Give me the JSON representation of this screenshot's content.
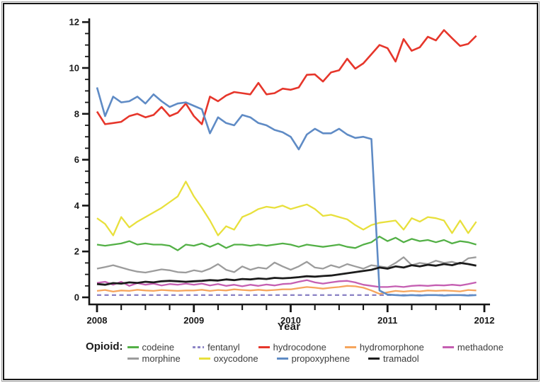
{
  "figure": {
    "x_axis_title": "Year"
  },
  "legend": {
    "title": "Opioid:",
    "rows": [
      [
        "codeine",
        "fentanyl",
        "hydrocodone",
        "hydromorphone",
        "methadone"
      ],
      [
        "morphine",
        "oxycodone",
        "propoxyphene",
        "tramadol"
      ]
    ]
  },
  "chart_data": {
    "type": "line",
    "title": "",
    "xlabel": "Year",
    "ylabel": "",
    "x_frequency": "monthly",
    "x_start": "2008-01",
    "x_end": "2011-12",
    "xlim": [
      2008,
      2012
    ],
    "ylim": [
      0,
      12
    ],
    "x_tick_labels": [
      "2008",
      "2009",
      "2010",
      "2011",
      "2012"
    ],
    "y_tick_labels": [
      "0",
      "2",
      "4",
      "6",
      "8",
      "10",
      "12"
    ],
    "y_minor_tick_step": 0.5,
    "x_minor_ticks_per_year": 4,
    "grid": false,
    "legend_position": "bottom",
    "annotations": [
      "propoxyphene drops from ~6.9 to ~0.1 between Nov and Dec 2010"
    ],
    "series": [
      {
        "name": "codeine",
        "color": "#53b046",
        "dash": false,
        "values": [
          2.3,
          2.25,
          2.3,
          2.35,
          2.45,
          2.3,
          2.35,
          2.3,
          2.3,
          2.25,
          2.05,
          2.3,
          2.25,
          2.35,
          2.2,
          2.35,
          2.15,
          2.3,
          2.3,
          2.25,
          2.3,
          2.25,
          2.3,
          2.35,
          2.3,
          2.2,
          2.3,
          2.25,
          2.2,
          2.25,
          2.3,
          2.2,
          2.15,
          2.3,
          2.4,
          2.65,
          2.45,
          2.6,
          2.4,
          2.55,
          2.45,
          2.5,
          2.4,
          2.5,
          2.35,
          2.45,
          2.4,
          2.3
        ]
      },
      {
        "name": "fentanyl",
        "color": "#8d85c6",
        "dash": true,
        "values": [
          0.1,
          0.1,
          0.1,
          0.1,
          0.1,
          0.1,
          0.1,
          0.1,
          0.1,
          0.1,
          0.1,
          0.1,
          0.1,
          0.1,
          0.1,
          0.1,
          0.1,
          0.1,
          0.1,
          0.1,
          0.1,
          0.1,
          0.1,
          0.1,
          0.1,
          0.1,
          0.1,
          0.1,
          0.1,
          0.1,
          0.1,
          0.1,
          0.1,
          0.1,
          0.1,
          0.1,
          0.1,
          0.1,
          0.1,
          0.1,
          0.1,
          0.1,
          0.1,
          0.1,
          0.1,
          0.1,
          0.1,
          0.1
        ]
      },
      {
        "name": "hydrocodone",
        "color": "#e6362b",
        "dash": false,
        "values": [
          8.1,
          7.55,
          7.6,
          7.65,
          7.9,
          8.0,
          7.85,
          7.95,
          8.3,
          7.9,
          8.05,
          8.45,
          7.9,
          7.55,
          8.75,
          8.55,
          8.8,
          8.95,
          8.9,
          8.85,
          9.35,
          8.85,
          8.9,
          9.1,
          9.05,
          9.15,
          9.7,
          9.72,
          9.41,
          9.81,
          9.9,
          10.4,
          9.97,
          10.2,
          10.6,
          11.0,
          10.86,
          10.28,
          11.26,
          10.75,
          10.9,
          11.36,
          11.2,
          11.65,
          11.3,
          10.96,
          11.05,
          11.4
        ]
      },
      {
        "name": "hydromorphone",
        "color": "#f6a55c",
        "dash": false,
        "values": [
          0.28,
          0.32,
          0.25,
          0.3,
          0.28,
          0.33,
          0.3,
          0.28,
          0.32,
          0.3,
          0.28,
          0.3,
          0.3,
          0.33,
          0.28,
          0.32,
          0.3,
          0.35,
          0.32,
          0.3,
          0.33,
          0.3,
          0.32,
          0.35,
          0.35,
          0.4,
          0.45,
          0.42,
          0.38,
          0.42,
          0.45,
          0.5,
          0.48,
          0.42,
          0.3,
          0.15,
          0.22,
          0.28,
          0.25,
          0.28,
          0.26,
          0.3,
          0.28,
          0.3,
          0.28,
          0.26,
          0.32,
          0.3
        ]
      },
      {
        "name": "methadone",
        "color": "#c55fb2",
        "dash": false,
        "values": [
          0.63,
          0.68,
          0.55,
          0.68,
          0.5,
          0.62,
          0.55,
          0.6,
          0.52,
          0.58,
          0.55,
          0.6,
          0.55,
          0.6,
          0.52,
          0.58,
          0.5,
          0.55,
          0.48,
          0.55,
          0.5,
          0.56,
          0.52,
          0.58,
          0.6,
          0.68,
          0.75,
          0.65,
          0.6,
          0.65,
          0.7,
          0.72,
          0.65,
          0.55,
          0.5,
          0.45,
          0.45,
          0.48,
          0.45,
          0.5,
          0.52,
          0.5,
          0.53,
          0.52,
          0.55,
          0.52,
          0.58,
          0.65
        ]
      },
      {
        "name": "morphine",
        "color": "#9c9c9c",
        "dash": false,
        "values": [
          1.25,
          1.32,
          1.4,
          1.3,
          1.2,
          1.12,
          1.08,
          1.15,
          1.22,
          1.18,
          1.1,
          1.08,
          1.18,
          1.12,
          1.25,
          1.45,
          1.2,
          1.1,
          1.35,
          1.2,
          1.3,
          1.25,
          1.52,
          1.35,
          1.2,
          1.35,
          1.55,
          1.3,
          1.25,
          1.4,
          1.3,
          1.45,
          1.35,
          1.25,
          1.4,
          1.35,
          1.3,
          1.5,
          1.75,
          1.4,
          1.5,
          1.45,
          1.6,
          1.5,
          1.55,
          1.45,
          1.7,
          1.75
        ]
      },
      {
        "name": "oxycodone",
        "color": "#e8e03c",
        "dash": false,
        "values": [
          3.45,
          3.2,
          2.7,
          3.5,
          3.05,
          3.3,
          3.5,
          3.7,
          3.9,
          4.15,
          4.4,
          5.05,
          4.4,
          3.9,
          3.35,
          2.7,
          3.1,
          2.95,
          3.5,
          3.65,
          3.85,
          3.95,
          3.9,
          4.0,
          3.85,
          3.95,
          4.05,
          3.85,
          3.55,
          3.6,
          3.5,
          3.4,
          3.15,
          2.95,
          3.15,
          3.25,
          3.3,
          3.35,
          2.95,
          3.45,
          3.3,
          3.5,
          3.45,
          3.35,
          2.8,
          3.35,
          2.8,
          3.3
        ]
      },
      {
        "name": "propoxyphene",
        "color": "#5f8bc5",
        "dash": false,
        "values": [
          9.15,
          7.9,
          8.75,
          8.5,
          8.55,
          8.75,
          8.45,
          8.85,
          8.55,
          8.3,
          8.45,
          8.5,
          8.35,
          8.2,
          7.15,
          7.85,
          7.6,
          7.5,
          7.95,
          7.85,
          7.6,
          7.5,
          7.3,
          7.2,
          7.0,
          6.45,
          7.1,
          7.35,
          7.15,
          7.15,
          7.35,
          7.1,
          6.95,
          7.0,
          6.9,
          0.3,
          0.12,
          0.1,
          0.08,
          0.1,
          0.08,
          0.1,
          0.1,
          0.08,
          0.1,
          0.1,
          0.08,
          0.1
        ]
      },
      {
        "name": "tramadol",
        "color": "#1c1c1c",
        "dash": false,
        "values": [
          0.58,
          0.55,
          0.62,
          0.6,
          0.65,
          0.63,
          0.68,
          0.65,
          0.7,
          0.72,
          0.7,
          0.68,
          0.7,
          0.72,
          0.75,
          0.73,
          0.78,
          0.75,
          0.8,
          0.78,
          0.82,
          0.8,
          0.85,
          0.83,
          0.85,
          0.88,
          0.92,
          0.9,
          0.93,
          0.95,
          1.0,
          1.05,
          1.1,
          1.15,
          1.2,
          1.3,
          1.25,
          1.35,
          1.3,
          1.4,
          1.35,
          1.42,
          1.38,
          1.45,
          1.4,
          1.5,
          1.45,
          1.38
        ]
      }
    ]
  }
}
